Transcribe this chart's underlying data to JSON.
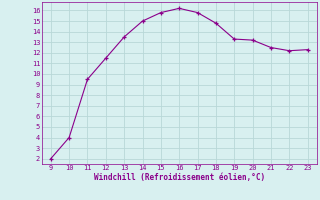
{
  "x": [
    9,
    10,
    11,
    12,
    13,
    14,
    15,
    16,
    17,
    18,
    19,
    20,
    21,
    22,
    23
  ],
  "y": [
    2.0,
    4.0,
    9.5,
    11.5,
    13.5,
    15.0,
    15.8,
    16.2,
    15.8,
    14.8,
    13.3,
    13.2,
    12.5,
    12.2,
    12.3
  ],
  "line_color": "#8B008B",
  "marker": "+",
  "marker_size": 3,
  "bg_color": "#d8f0f0",
  "grid_color": "#b8d8d8",
  "xlabel": "Windchill (Refroidissement éolien,°C)",
  "xlabel_color": "#8B008B",
  "tick_color": "#8B008B",
  "xlim": [
    8.5,
    23.5
  ],
  "ylim": [
    1.5,
    16.8
  ],
  "xticks": [
    9,
    10,
    11,
    12,
    13,
    14,
    15,
    16,
    17,
    18,
    19,
    20,
    21,
    22,
    23
  ],
  "yticks": [
    2,
    3,
    4,
    5,
    6,
    7,
    8,
    9,
    10,
    11,
    12,
    13,
    14,
    15,
    16
  ]
}
